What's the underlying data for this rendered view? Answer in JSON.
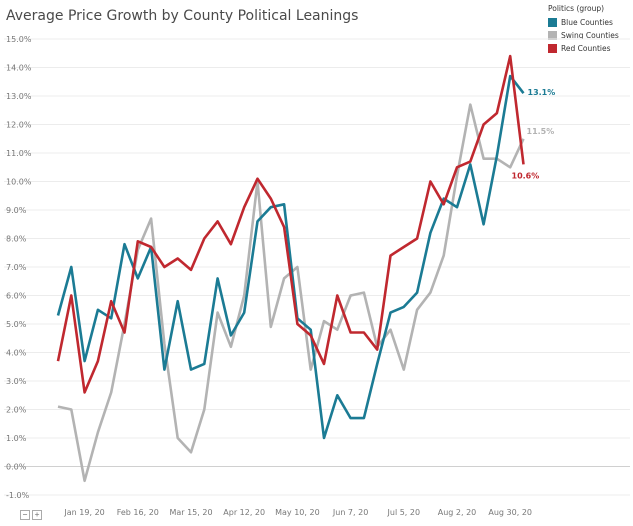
{
  "title": "Average Price Growth by County Political Leanings",
  "legend": {
    "title": "Politics (group)",
    "placement": "top-right",
    "items": [
      {
        "label": "Blue Counties",
        "color": "#1b7b94"
      },
      {
        "label": "Swing Counties",
        "color": "#b3b3b3"
      },
      {
        "label": "Red Counties",
        "color": "#c0282f"
      }
    ]
  },
  "controls": {
    "collapse": "−",
    "expand": "+"
  },
  "chart_data": {
    "type": "line",
    "title": "Average Price Growth by County Political Leanings",
    "xlabel": "",
    "ylabel": "",
    "ylim": [
      -1.0,
      15.0
    ],
    "yticks": [
      "-1.0%",
      "0.0%",
      "1.0%",
      "2.0%",
      "3.0%",
      "4.0%",
      "5.0%",
      "6.0%",
      "7.0%",
      "8.0%",
      "9.0%",
      "10.0%",
      "11.0%",
      "12.0%",
      "13.0%",
      "14.0%",
      "15.0%"
    ],
    "ytick_values": [
      -1,
      0,
      1,
      2,
      3,
      4,
      5,
      6,
      7,
      8,
      9,
      10,
      11,
      12,
      13,
      14,
      15
    ],
    "xticks": [
      {
        "label": "Jan 19, 20",
        "index": 2
      },
      {
        "label": "Feb 16, 20",
        "index": 6
      },
      {
        "label": "Mar 15, 20",
        "index": 10
      },
      {
        "label": "Apr 12, 20",
        "index": 14
      },
      {
        "label": "May 10, 20",
        "index": 18
      },
      {
        "label": "Jun 7, 20",
        "index": 22
      },
      {
        "label": "Jul 5, 20",
        "index": 26
      },
      {
        "label": "Aug 2, 20",
        "index": 30
      },
      {
        "label": "Aug 30, 20",
        "index": 34
      }
    ],
    "grid": true,
    "series": [
      {
        "name": "Blue Counties",
        "color": "#1b7b94",
        "end_label": "13.1%",
        "values": [
          5.3,
          7.0,
          3.7,
          5.5,
          5.2,
          7.8,
          6.6,
          7.7,
          3.4,
          5.8,
          3.4,
          3.6,
          6.6,
          4.6,
          5.4,
          8.6,
          9.1,
          9.2,
          5.2,
          4.8,
          1.0,
          2.5,
          1.7,
          1.7,
          3.6,
          5.4,
          5.6,
          6.1,
          8.2,
          9.4,
          9.1,
          10.6,
          8.5,
          10.9,
          13.7,
          13.1
        ]
      },
      {
        "name": "Swing Counties",
        "color": "#b3b3b3",
        "end_label": "11.5%",
        "values": [
          2.1,
          2.0,
          -0.5,
          1.2,
          2.6,
          5.0,
          7.6,
          8.7,
          4.3,
          1.0,
          0.5,
          2.0,
          5.4,
          4.2,
          6.0,
          10.0,
          4.9,
          6.6,
          7.0,
          3.4,
          5.1,
          4.8,
          6.0,
          6.1,
          4.2,
          4.8,
          3.4,
          5.5,
          6.1,
          7.4,
          10.2,
          12.7,
          10.8,
          10.8,
          10.5,
          11.5
        ]
      },
      {
        "name": "Red Counties",
        "color": "#c0282f",
        "end_label": "10.6%",
        "values": [
          3.7,
          6.0,
          2.6,
          3.7,
          5.8,
          4.7,
          7.9,
          7.7,
          7.0,
          7.3,
          6.9,
          8.0,
          8.6,
          7.8,
          9.1,
          10.1,
          9.4,
          8.4,
          5.0,
          4.6,
          3.6,
          6.0,
          4.7,
          4.7,
          4.1,
          7.4,
          7.7,
          8.0,
          10.0,
          9.2,
          10.5,
          10.7,
          12.0,
          12.4,
          14.4,
          10.6
        ]
      }
    ]
  }
}
